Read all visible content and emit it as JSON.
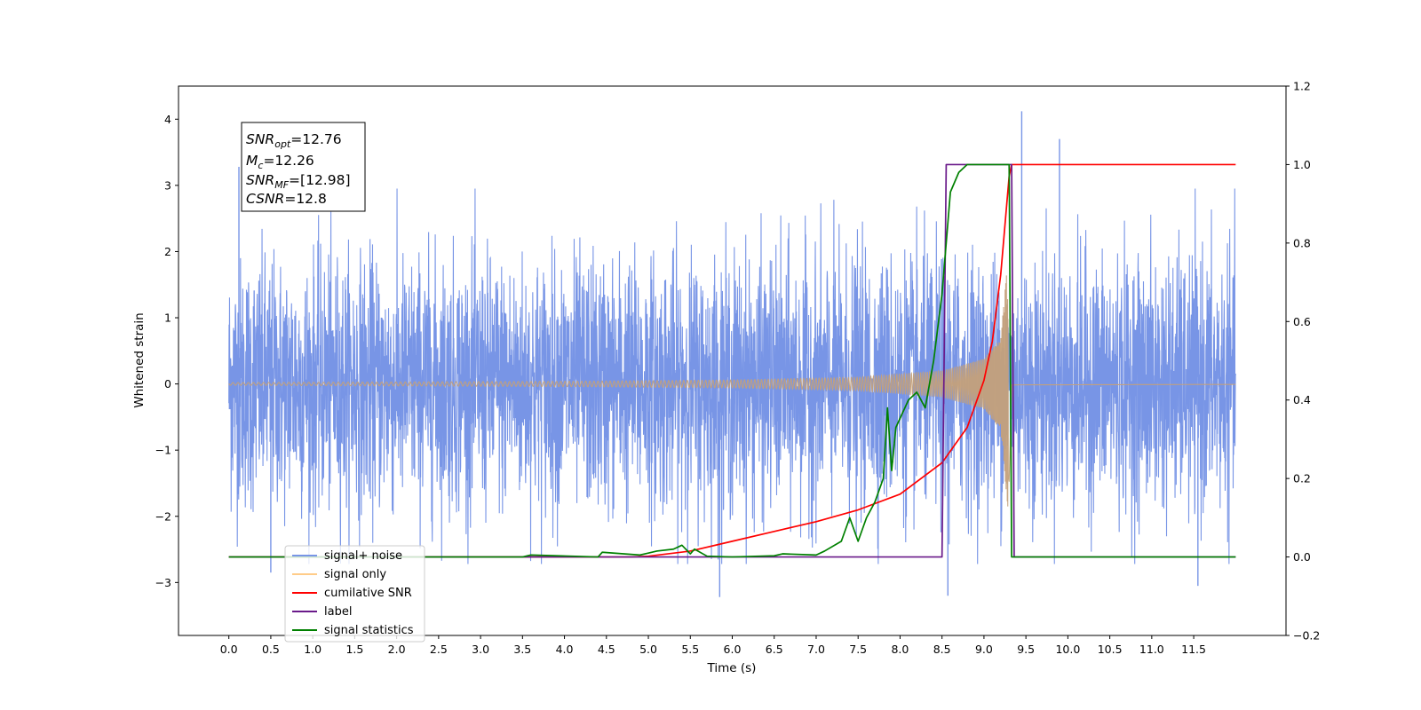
{
  "chart_data": {
    "type": "line",
    "title": "",
    "xlabel": "Time (s)",
    "ylabel": "Whitened strain",
    "y2label": "",
    "xlim": [
      -0.6,
      12.6
    ],
    "ylim": [
      -3.8,
      4.5
    ],
    "y2lim": [
      -0.2,
      1.2
    ],
    "x_ticks": [
      0.0,
      0.5,
      1.0,
      1.5,
      2.0,
      2.5,
      3.0,
      3.5,
      4.0,
      4.5,
      5.0,
      5.5,
      6.0,
      6.5,
      7.0,
      7.5,
      8.0,
      8.5,
      9.0,
      9.5,
      10.0,
      10.5,
      11.0,
      11.5
    ],
    "x_tick_labels": [
      "0.0",
      "0.5",
      "1.0",
      "1.5",
      "2.0",
      "2.5",
      "3.0",
      "3.5",
      "4.0",
      "4.5",
      "5.0",
      "5.5",
      "6.0",
      "6.5",
      "7.0",
      "7.5",
      "8.0",
      "8.5",
      "9.0",
      "9.5",
      "10.0",
      "10.5",
      "11.0",
      "11.5"
    ],
    "y_ticks": [
      -3,
      -2,
      -1,
      0,
      1,
      2,
      3,
      4
    ],
    "y_tick_labels": [
      "−3",
      "−2",
      "−1",
      "0",
      "1",
      "2",
      "3",
      "4"
    ],
    "y2_ticks": [
      -0.2,
      0.0,
      0.2,
      0.4,
      0.6,
      0.8,
      1.0,
      1.2
    ],
    "y2_tick_labels": [
      "−0.2",
      "0.0",
      "0.2",
      "0.4",
      "0.6",
      "0.8",
      "1.0",
      "1.2"
    ],
    "grid": false,
    "legend_placement": "lower-left",
    "annotation": {
      "lines": [
        {
          "sym": "SNR",
          "sub": "opt",
          "value": "=12.76"
        },
        {
          "sym": "M",
          "sub": "c",
          "value": "=12.26"
        },
        {
          "sym": "SNR",
          "sub": "MF",
          "value": "=[12.98]"
        },
        {
          "sym": "CSNR",
          "sub": "",
          "value": "=12.8"
        }
      ]
    },
    "series": [
      {
        "name": "signal+ noise",
        "axis": "left",
        "color": "#7895e6",
        "kind": "noise",
        "x_range": [
          0.0,
          12.0
        ],
        "typical_range": [
          -1.5,
          1.5
        ],
        "peak_range": [
          -3.2,
          4.1
        ],
        "peaks": [
          [
            9.45,
            4.12
          ],
          [
            9.9,
            3.7
          ],
          [
            0.12,
            3.28
          ],
          [
            5.85,
            -3.22
          ],
          [
            8.57,
            -3.2
          ],
          [
            11.55,
            -3.05
          ],
          [
            0.5,
            -2.85
          ]
        ]
      },
      {
        "name": "signal only",
        "axis": "left",
        "color": "#c4a07a",
        "kind": "chirp",
        "x_range": [
          0.0,
          12.0
        ],
        "merger_time": 9.3,
        "envelope": [
          [
            0.0,
            0.02
          ],
          [
            4.0,
            0.04
          ],
          [
            6.0,
            0.06
          ],
          [
            7.5,
            0.1
          ],
          [
            8.5,
            0.2
          ],
          [
            9.0,
            0.38
          ],
          [
            9.2,
            0.7
          ],
          [
            9.3,
            2.1
          ],
          [
            9.33,
            0.02
          ],
          [
            12.0,
            0.01
          ]
        ]
      },
      {
        "name": "cumilative SNR",
        "axis": "right",
        "color": "#ff0000",
        "points": [
          [
            0.0,
            0.0
          ],
          [
            4.8,
            0.0
          ],
          [
            5.0,
            0.002
          ],
          [
            5.5,
            0.015
          ],
          [
            6.0,
            0.04
          ],
          [
            6.5,
            0.065
          ],
          [
            7.0,
            0.09
          ],
          [
            7.5,
            0.12
          ],
          [
            8.0,
            0.16
          ],
          [
            8.5,
            0.24
          ],
          [
            8.8,
            0.33
          ],
          [
            9.0,
            0.45
          ],
          [
            9.1,
            0.55
          ],
          [
            9.2,
            0.72
          ],
          [
            9.3,
            0.97
          ],
          [
            9.33,
            1.0
          ],
          [
            12.0,
            1.0
          ]
        ]
      },
      {
        "name": "label",
        "axis": "right",
        "color": "#6a1a8a",
        "points": [
          [
            0.0,
            0.0
          ],
          [
            8.5,
            0.0
          ],
          [
            8.55,
            1.0
          ],
          [
            9.33,
            1.0
          ],
          [
            9.36,
            0.0
          ],
          [
            12.0,
            0.0
          ]
        ]
      },
      {
        "name": "signal statistics",
        "axis": "right",
        "color": "#008000",
        "points": [
          [
            0.0,
            0.0
          ],
          [
            3.5,
            0.0
          ],
          [
            3.6,
            0.005
          ],
          [
            4.4,
            0.0
          ],
          [
            4.45,
            0.012
          ],
          [
            4.9,
            0.005
          ],
          [
            5.0,
            0.01
          ],
          [
            5.1,
            0.015
          ],
          [
            5.3,
            0.02
          ],
          [
            5.4,
            0.03
          ],
          [
            5.5,
            0.008
          ],
          [
            5.55,
            0.02
          ],
          [
            5.7,
            0.002
          ],
          [
            6.0,
            0.0
          ],
          [
            6.5,
            0.003
          ],
          [
            6.6,
            0.008
          ],
          [
            7.0,
            0.005
          ],
          [
            7.1,
            0.015
          ],
          [
            7.3,
            0.04
          ],
          [
            7.4,
            0.1
          ],
          [
            7.5,
            0.04
          ],
          [
            7.6,
            0.1
          ],
          [
            7.7,
            0.14
          ],
          [
            7.8,
            0.2
          ],
          [
            7.85,
            0.38
          ],
          [
            7.9,
            0.22
          ],
          [
            7.95,
            0.33
          ],
          [
            8.1,
            0.4
          ],
          [
            8.2,
            0.42
          ],
          [
            8.3,
            0.38
          ],
          [
            8.4,
            0.5
          ],
          [
            8.5,
            0.67
          ],
          [
            8.6,
            0.93
          ],
          [
            8.7,
            0.98
          ],
          [
            8.8,
            1.0
          ],
          [
            9.3,
            1.0
          ],
          [
            9.33,
            0.0
          ],
          [
            12.0,
            0.0
          ]
        ]
      }
    ]
  }
}
